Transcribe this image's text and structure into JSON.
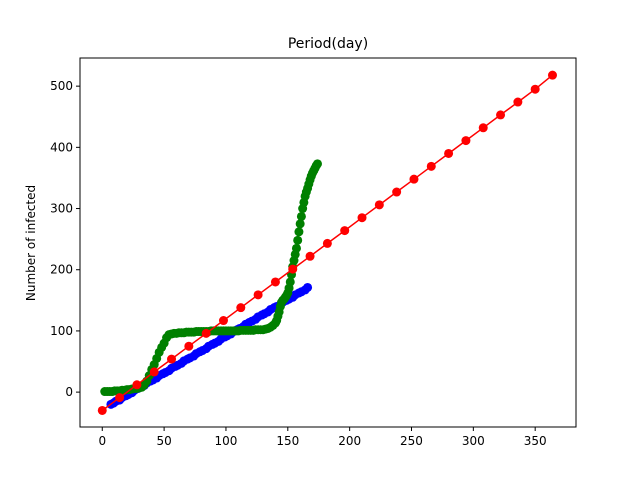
{
  "chart_data": {
    "type": "line",
    "title": "Period(day)",
    "xlabel": "",
    "ylabel": "Number of infected",
    "xlim": [
      -18,
      383
    ],
    "ylim": [
      -57,
      546
    ],
    "xticks": [
      0,
      50,
      100,
      150,
      200,
      250,
      300,
      350
    ],
    "yticks": [
      0,
      100,
      200,
      300,
      400,
      500
    ],
    "grid": false,
    "series": [
      {
        "color": "#0000ff",
        "style": "dashed-dots",
        "x": [
          7,
          9,
          11,
          14,
          16,
          19,
          21,
          24,
          26,
          29,
          31,
          34,
          36,
          39,
          41,
          44,
          46,
          49,
          51,
          54,
          56,
          59,
          61,
          64,
          66,
          69,
          71,
          74,
          76,
          79,
          81,
          84,
          86,
          89,
          91,
          94,
          96,
          99,
          101,
          104,
          106,
          109,
          111,
          114,
          116,
          119,
          121,
          124,
          126,
          129,
          131,
          134,
          136,
          139,
          141,
          144,
          146,
          149,
          151,
          154,
          156,
          159,
          161,
          164,
          166
        ],
        "y": [
          -20,
          -18,
          -15,
          -13,
          -9,
          -6,
          -4,
          -1,
          3,
          6,
          8,
          11,
          15,
          18,
          20,
          23,
          27,
          30,
          32,
          35,
          39,
          42,
          44,
          47,
          51,
          54,
          56,
          59,
          63,
          66,
          68,
          71,
          75,
          78,
          80,
          83,
          87,
          90,
          92,
          95,
          99,
          102,
          104,
          107,
          111,
          114,
          116,
          119,
          123,
          126,
          128,
          131,
          135,
          138,
          140,
          143,
          147,
          150,
          152,
          155,
          159,
          162,
          164,
          167,
          171
        ]
      },
      {
        "color": "#008000",
        "style": "line-dots",
        "x": [
          2,
          4,
          6,
          8,
          10,
          12,
          14,
          16,
          18,
          20,
          22,
          24,
          26,
          28,
          30,
          32,
          34,
          36,
          38,
          40,
          42,
          44,
          46,
          48,
          50,
          52,
          54,
          56,
          58,
          60,
          62,
          64,
          66,
          68,
          70,
          72,
          74,
          76,
          78,
          80,
          82,
          84,
          86,
          88,
          90,
          92,
          94,
          96,
          98,
          100,
          102,
          104,
          106,
          108,
          110,
          112,
          114,
          116,
          118,
          120,
          122,
          124,
          126,
          128,
          130,
          132,
          134,
          136,
          138,
          140,
          141,
          142,
          143,
          144,
          145,
          146,
          147,
          148,
          149,
          150,
          151,
          152,
          153,
          154,
          155,
          156,
          157,
          158,
          159,
          160,
          161,
          162,
          163,
          164,
          165,
          166,
          167,
          168,
          169,
          170,
          171,
          172,
          173,
          174
        ],
        "y": [
          1,
          1,
          1,
          1,
          2,
          2,
          2,
          3,
          3,
          4,
          4,
          5,
          6,
          6,
          7,
          8,
          12,
          18,
          27,
          37,
          45,
          55,
          65,
          73,
          80,
          89,
          94,
          95,
          96,
          96,
          97,
          97,
          97,
          98,
          98,
          98,
          98,
          99,
          99,
          99,
          99,
          99,
          99,
          100,
          100,
          100,
          100,
          100,
          100,
          100,
          100,
          100,
          100,
          100,
          100,
          101,
          101,
          101,
          101,
          101,
          101,
          102,
          102,
          102,
          102,
          103,
          104,
          106,
          109,
          113,
          117,
          124,
          131,
          140,
          147,
          150,
          152,
          155,
          158,
          162,
          170,
          180,
          192,
          205,
          215,
          225,
          235,
          248,
          262,
          275,
          287,
          300,
          310,
          320,
          327,
          333,
          340,
          347,
          353,
          358,
          362,
          366,
          370,
          373
        ]
      },
      {
        "color": "#ff0000",
        "style": "line-dots",
        "x": [
          0,
          14,
          28,
          42,
          56,
          70,
          84,
          98,
          112,
          126,
          140,
          154,
          168,
          182,
          196,
          210,
          224,
          238,
          252,
          266,
          280,
          294,
          308,
          322,
          336,
          350,
          364
        ],
        "y": [
          -30,
          -9,
          12,
          33,
          54,
          75,
          96,
          117,
          138,
          159,
          180,
          201,
          222,
          243,
          264,
          285,
          306,
          327,
          348,
          369,
          390,
          411,
          432,
          453,
          474,
          495,
          518
        ]
      }
    ]
  }
}
